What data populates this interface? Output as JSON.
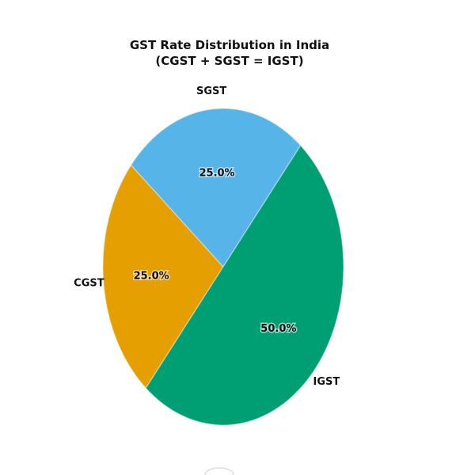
{
  "chart_data": {
    "type": "pie",
    "title": "GST Rate Distribution in India",
    "subtitle": "(CGST + SGST = IGST)",
    "slices": [
      {
        "label": "CGST",
        "value": 25.0,
        "pct_label": "25.0%",
        "color": "#E69F00"
      },
      {
        "label": "SGST",
        "value": 25.0,
        "pct_label": "25.0%",
        "color": "#56B4E9"
      },
      {
        "label": "IGST",
        "value": 50.0,
        "pct_label": "50.0%",
        "color": "#009E73"
      }
    ]
  }
}
